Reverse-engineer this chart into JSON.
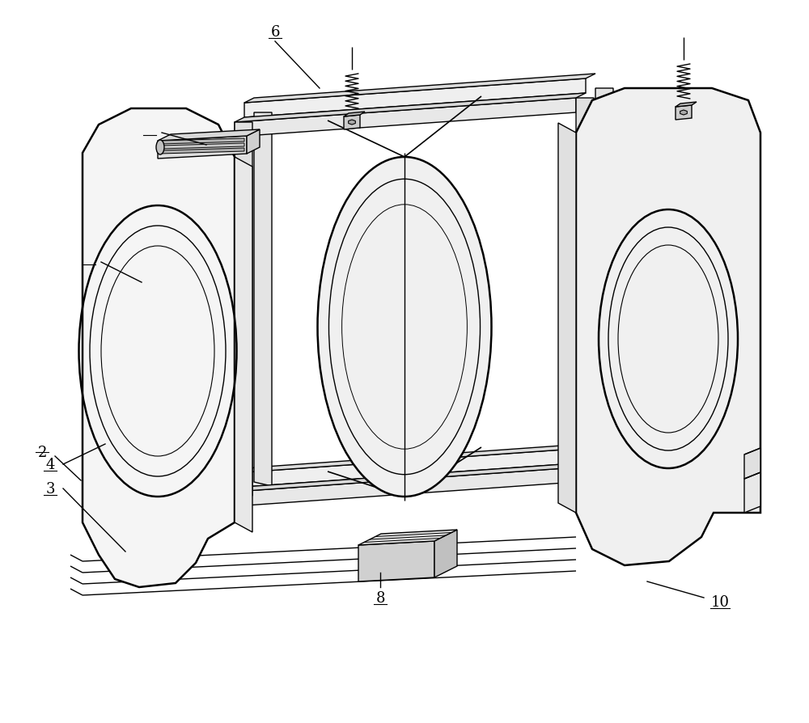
{
  "bg_color": "#ffffff",
  "line_color": "#000000",
  "lw": 1.0,
  "lw_thick": 1.8,
  "fig_width": 10.0,
  "fig_height": 8.95,
  "dpi": 100,
  "label_fontsize": 13
}
